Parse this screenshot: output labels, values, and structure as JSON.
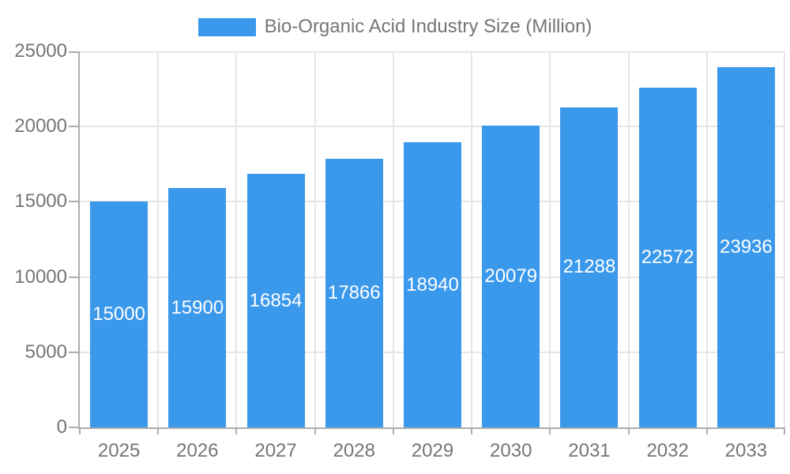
{
  "legend": {
    "label": "Bio-Organic Acid Industry Size (Million)",
    "swatch_color": "#3b99ec"
  },
  "chart_data": {
    "type": "bar",
    "title": "Bio-Organic Acid Industry Size (Million)",
    "categories": [
      "2025",
      "2026",
      "2027",
      "2028",
      "2029",
      "2030",
      "2031",
      "2032",
      "2033"
    ],
    "values": [
      15000,
      15900,
      16854,
      17866,
      18940,
      20079,
      21288,
      22572,
      23936
    ],
    "xlabel": "",
    "ylabel": "",
    "ylim": [
      0,
      25000
    ],
    "yticks": [
      0,
      5000,
      10000,
      15000,
      20000,
      25000
    ],
    "grid": true,
    "legend_position": "top-center",
    "bar_label_position": "middle-of-bar",
    "colors": {
      "bar": "#3b99ec",
      "bar_label": "#ffffff",
      "axis_text": "#757575",
      "axis_line": "#adadad",
      "grid_line": "#e6e6e6",
      "background": "#ffffff"
    }
  }
}
